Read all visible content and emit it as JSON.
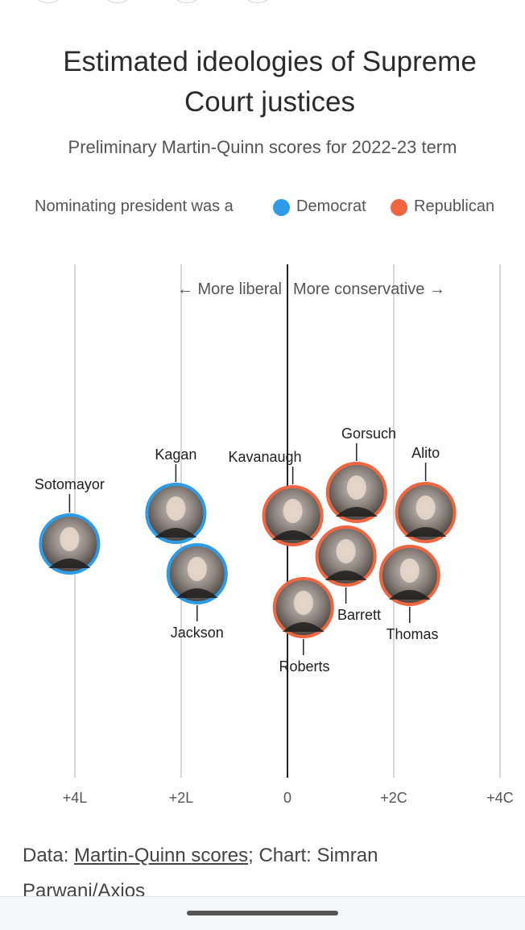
{
  "title": "Estimated ideologies of Supreme Court justices",
  "subtitle": "Preliminary Martin-Quinn scores for 2022-23 term",
  "legend": {
    "prefix": "Nominating president was a",
    "democrat": "Democrat",
    "republican": "Republican"
  },
  "colors": {
    "democrat": "#2d9be6",
    "republican": "#ef6540",
    "axis": "#222222",
    "gridline": "#cccccc"
  },
  "direction": {
    "liberal": "← More liberal",
    "conservative": "More conservative →"
  },
  "chart_data": {
    "type": "scatter",
    "x_axis": {
      "range": [
        -4,
        4
      ],
      "ticks": [
        -4,
        -2,
        0,
        2,
        4
      ],
      "tick_labels": [
        "+4L",
        "+2L",
        "0",
        "+2C",
        "+4C"
      ]
    },
    "points": [
      {
        "name": "Sotomayor",
        "x": -4.1,
        "party": "democrat"
      },
      {
        "name": "Kagan",
        "x": -2.1,
        "party": "democrat"
      },
      {
        "name": "Jackson",
        "x": -1.7,
        "party": "democrat"
      },
      {
        "name": "Kavanaugh",
        "x": 0.1,
        "party": "republican"
      },
      {
        "name": "Roberts",
        "x": 0.3,
        "party": "republican"
      },
      {
        "name": "Gorsuch",
        "x": 1.3,
        "party": "republican"
      },
      {
        "name": "Barrett",
        "x": 1.1,
        "party": "republican"
      },
      {
        "name": "Alito",
        "x": 2.6,
        "party": "republican"
      },
      {
        "name": "Thomas",
        "x": 2.3,
        "party": "republican"
      }
    ]
  },
  "footer": {
    "prefix": "Data: ",
    "source_link": "Martin-Quinn scores",
    "suffix": "; Chart: Simran Parwani/Axios"
  }
}
